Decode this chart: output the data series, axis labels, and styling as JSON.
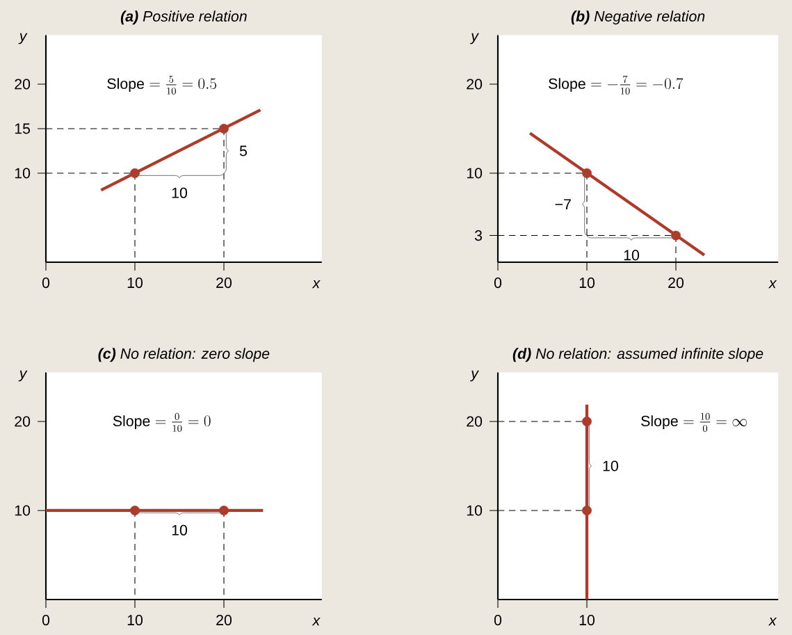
{
  "chart_data": [
    {
      "type": "line",
      "title": "**(a)** Positive relation",
      "xlabel": "x",
      "ylabel": "y",
      "xlim": [
        0,
        31
      ],
      "ylim": [
        0,
        25.5
      ],
      "xticks": [
        0,
        10,
        20
      ],
      "yticks": [
        10,
        15,
        20
      ],
      "series": [
        {
          "color": "#000000",
          "line_style": "dashed",
          "x": [
            0,
            10,
            10
          ],
          "values": [
            10,
            10,
            0
          ]
        },
        {
          "color": "#000000",
          "line_style": "dashed",
          "x": [
            0,
            20,
            20
          ],
          "values": [
            15,
            15,
            0
          ]
        },
        {
          "color": "#b03a2a",
          "x": [
            6.2,
            24.1
          ],
          "values": [
            8.1,
            17.1
          ]
        },
        {
          "type": "scatter",
          "marker": "circle",
          "color": "#b03a2a",
          "x": [
            10,
            20
          ],
          "values": [
            10,
            15
          ]
        }
      ],
      "annotations": [
        "\\mathrm{Slope} = \\frac{5}{10} = 0.5",
        "10",
        "5"
      ]
    },
    {
      "type": "line",
      "title": "**(b)** Negative relation",
      "xlabel": "x",
      "ylabel": "y",
      "xlim": [
        0,
        31.5
      ],
      "ylim": [
        0,
        25.5
      ],
      "xticks": [
        0,
        10,
        20
      ],
      "yticks": [
        3,
        10,
        20
      ],
      "series": [
        {
          "color": "#000000",
          "line_style": "dashed",
          "x": [
            0,
            10,
            10
          ],
          "values": [
            10,
            10,
            0
          ]
        },
        {
          "color": "#000000",
          "line_style": "dashed",
          "x": [
            0,
            20,
            20
          ],
          "values": [
            3,
            3,
            0
          ]
        },
        {
          "color": "#b03a2a",
          "x": [
            3.6,
            23.2
          ],
          "values": [
            14.5,
            0.8
          ]
        },
        {
          "type": "scatter",
          "marker": "circle",
          "color": "#b03a2a",
          "x": [
            10,
            20
          ],
          "values": [
            10,
            3
          ]
        }
      ],
      "annotations": [
        "\\mathrm{Slope} = -\\frac{7}{10} = -0.7",
        "10",
        "−7"
      ]
    },
    {
      "type": "line",
      "title": "**(c)** No relation: zero slope",
      "xlabel": "x",
      "ylabel": "y",
      "xlim": [
        0,
        31
      ],
      "ylim": [
        0,
        25.5
      ],
      "xticks": [
        0,
        10,
        20
      ],
      "yticks": [
        10,
        20
      ],
      "series": [
        {
          "color": "#000000",
          "line_style": "dashed",
          "x": [
            10,
            10
          ],
          "values": [
            10,
            0
          ]
        },
        {
          "color": "#000000",
          "line_style": "dashed",
          "x": [
            20,
            20
          ],
          "values": [
            10,
            0
          ]
        },
        {
          "color": "#b03a2a",
          "x": [
            0,
            24.4
          ],
          "values": [
            10,
            10
          ]
        },
        {
          "type": "scatter",
          "marker": "circle",
          "color": "#b03a2a",
          "x": [
            10,
            20
          ],
          "values": [
            10,
            10
          ]
        }
      ],
      "annotations": [
        "\\mathrm{Slope} = \\frac{0}{10} = 0",
        "10"
      ]
    },
    {
      "type": "line",
      "title": "**(d)** No relation: assumed infinite slope",
      "xlabel": "x",
      "ylabel": "y",
      "xlim": [
        0,
        31.5
      ],
      "ylim": [
        0,
        25.5
      ],
      "xticks": [
        0,
        10
      ],
      "yticks": [
        10,
        20
      ],
      "series": [
        {
          "color": "#000000",
          "line_style": "dashed",
          "x": [
            0,
            10
          ],
          "values": [
            10,
            10
          ]
        },
        {
          "color": "#000000",
          "line_style": "dashed",
          "x": [
            0,
            10
          ],
          "values": [
            20,
            20
          ]
        },
        {
          "color": "#b03a2a",
          "x": [
            10,
            10
          ],
          "values": [
            0,
            21.9
          ]
        },
        {
          "type": "scatter",
          "marker": "circle",
          "color": "#b03a2a",
          "x": [
            10,
            10
          ],
          "values": [
            10,
            20
          ]
        }
      ],
      "annotations": [
        "\\mathrm{Slope} = \\frac{10}{0} = \\infty",
        "10"
      ]
    }
  ]
}
